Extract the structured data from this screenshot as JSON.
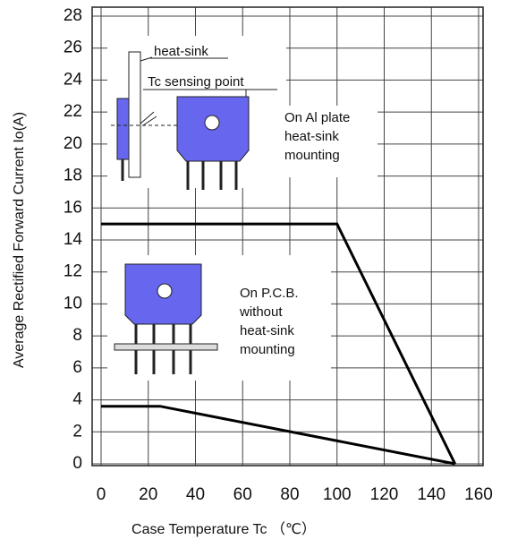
{
  "chart_data": {
    "type": "line",
    "x_label": "Case Temperature Tc （℃）",
    "y_label": "Average Rectified Forward Current Io(A)",
    "xlim": [
      0,
      160
    ],
    "xticks": [
      0,
      20,
      40,
      60,
      80,
      100,
      120,
      140,
      160
    ],
    "ylim": [
      0,
      28
    ],
    "yticks": [
      0,
      2,
      4,
      6,
      8,
      10,
      12,
      14,
      16,
      18,
      20,
      22,
      24,
      26,
      28
    ],
    "grid": true,
    "series": [
      {
        "color": "#000000",
        "x": [
          0,
          100,
          150
        ],
        "values": [
          15,
          15,
          0
        ]
      },
      {
        "color": "#000000",
        "x": [
          0,
          25,
          150
        ],
        "values": [
          3.6,
          3.6,
          0
        ]
      }
    ],
    "annotations": [
      {
        "lines": [
          "heat-sink"
        ]
      },
      {
        "lines": [
          "Tc sensing point"
        ]
      },
      {
        "lines": [
          "On Al plate",
          "heat-sink",
          "mounting"
        ]
      },
      {
        "lines": [
          "On P.C.B.",
          "without",
          "heat-sink",
          "mounting"
        ]
      }
    ]
  }
}
